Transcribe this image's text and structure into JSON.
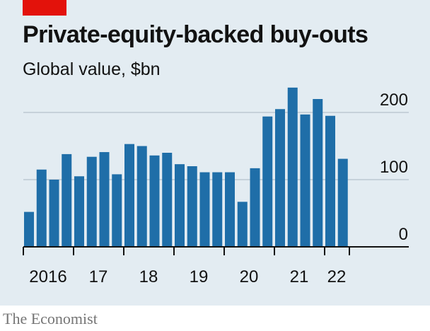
{
  "colors": {
    "background": "#e3ecf2",
    "bar": "#1f6ea8",
    "accent_red": "#e3120b",
    "grid": "#bcc8d1",
    "axis": "#121212"
  },
  "title": "Private-equity-backed buy-outs",
  "subtitle": "Global value, $bn",
  "source": "The Economist",
  "chart_data": {
    "type": "bar",
    "title": "Private-equity-backed buy-outs",
    "subtitle": "Global value, $bn",
    "xlabel": "",
    "ylabel": "",
    "ylim": [
      0,
      200
    ],
    "yticks": [
      0,
      100,
      200
    ],
    "ytick_labels": [
      "0",
      "100",
      "200"
    ],
    "grid": true,
    "y_axis_side": "right",
    "x_tick_labels": [
      "2016",
      "17",
      "18",
      "19",
      "20",
      "21",
      "22"
    ],
    "categories": [
      "2016 Q1",
      "2016 Q2",
      "2016 Q3",
      "2016 Q4",
      "2017 Q1",
      "2017 Q2",
      "2017 Q3",
      "2017 Q4",
      "2018 Q1",
      "2018 Q2",
      "2018 Q3",
      "2018 Q4",
      "2019 Q1",
      "2019 Q2",
      "2019 Q3",
      "2019 Q4",
      "2020 Q1",
      "2020 Q2",
      "2020 Q3",
      "2020 Q4",
      "2021 Q1",
      "2021 Q2",
      "2021 Q3",
      "2021 Q4",
      "2022 Q1",
      "2022 Q2"
    ],
    "values": [
      52,
      115,
      100,
      138,
      105,
      134,
      141,
      108,
      153,
      150,
      136,
      140,
      123,
      120,
      111,
      111,
      111,
      67,
      117,
      194,
      205,
      237,
      197,
      220,
      195,
      131
    ]
  }
}
